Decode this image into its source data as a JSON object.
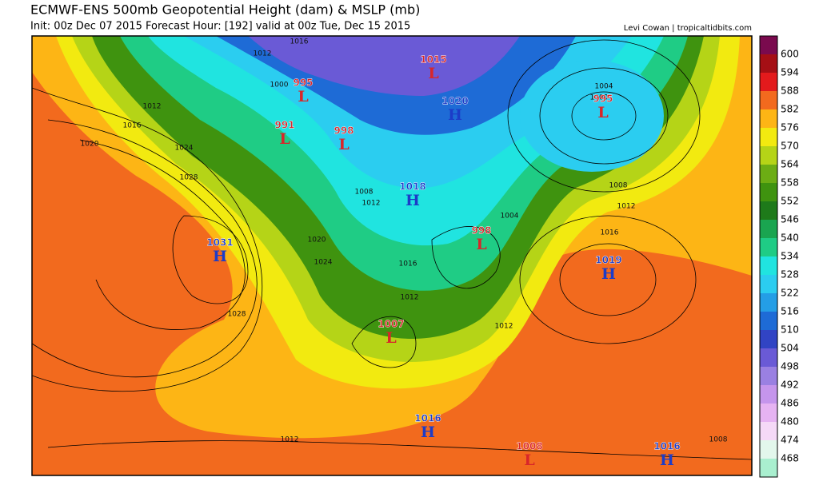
{
  "header": {
    "title": "ECMWF-ENS 500mb Geopotential Height (dam) & MSLP (mb)",
    "subtitle": "Init: 00z Dec 07 2015   Forecast Hour: [192]   valid at 00z Tue, Dec 15 2015",
    "credit": "Levi Cowan | tropicaltidbits.com"
  },
  "legend": {
    "ticks": [
      "600",
      "594",
      "588",
      "582",
      "576",
      "570",
      "564",
      "558",
      "552",
      "546",
      "540",
      "534",
      "528",
      "522",
      "516",
      "510",
      "504",
      "498",
      "492",
      "486",
      "480",
      "474",
      "468"
    ],
    "colors": [
      "#7a0a4e",
      "#a50f15",
      "#e31a1c",
      "#f26a1e",
      "#fdb515",
      "#f2ea10",
      "#b5d417",
      "#6cad14",
      "#3f930f",
      "#1e7a1a",
      "#1aa550",
      "#1fcc85",
      "#20e4e0",
      "#2bcdf0",
      "#249ee6",
      "#1e6bd6",
      "#3144c4",
      "#6a5ad6",
      "#9a80e2",
      "#c595ec",
      "#e6b3f2",
      "#f5d9f7",
      "#e3f7ec",
      "#a9efcf"
    ]
  },
  "centers": [
    {
      "letter": "L",
      "value": "995"
    },
    {
      "letter": "L",
      "value": "991"
    },
    {
      "letter": "L",
      "value": "998"
    },
    {
      "letter": "L",
      "value": "1015"
    },
    {
      "letter": "H",
      "value": "1020"
    },
    {
      "letter": "L",
      "value": "995"
    },
    {
      "letter": "H",
      "value": "1018"
    },
    {
      "letter": "L",
      "value": "998"
    },
    {
      "letter": "H",
      "value": "1031"
    },
    {
      "letter": "H",
      "value": "1019"
    },
    {
      "letter": "L",
      "value": "1007"
    },
    {
      "letter": "H",
      "value": "1016"
    },
    {
      "letter": "L",
      "value": "1008"
    },
    {
      "letter": "H",
      "value": "1016"
    }
  ],
  "contour_labels": [
    "1012",
    "1016",
    "1020",
    "1024",
    "1028",
    "1028",
    "1012",
    "1004",
    "1000",
    "1008",
    "1012",
    "1016",
    "1012",
    "1008",
    "1012",
    "1016",
    "1000",
    "1008",
    "1012",
    "1016",
    "1020",
    "1024",
    "1004",
    "1012"
  ]
}
